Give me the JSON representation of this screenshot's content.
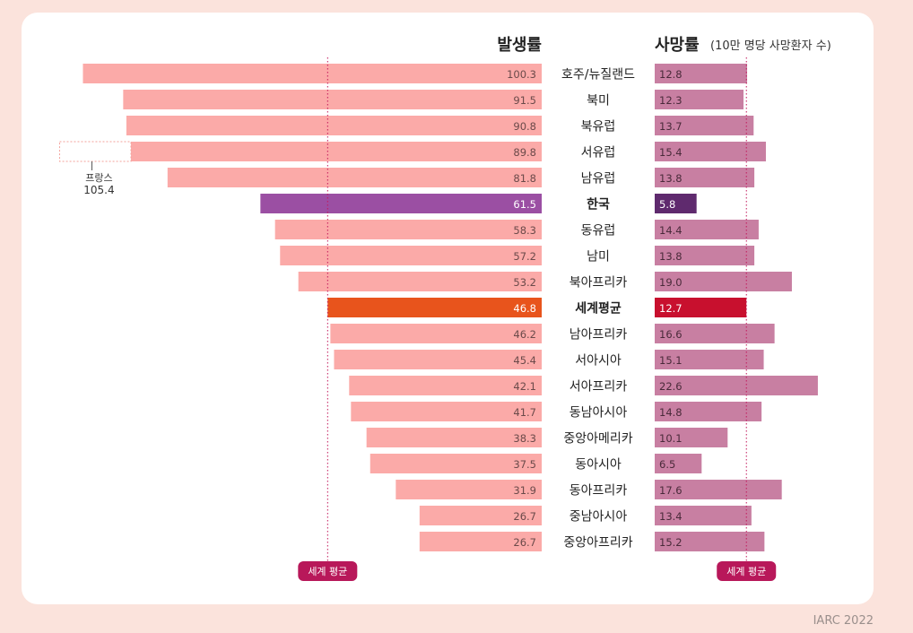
{
  "source": "IARC 2022",
  "chart_data": {
    "type": "bar",
    "layout": "butterfly",
    "left_title": "발생률",
    "right_title": "사망률",
    "right_subtitle": "(10만 명당 사망환자 수)",
    "categories": [
      "호주/뉴질랜드",
      "북미",
      "북유럽",
      "서유럽",
      "남유럽",
      "한국",
      "동유럽",
      "남미",
      "북아프리카",
      "세계평균",
      "남아프리카",
      "서아시아",
      "서아프리카",
      "동남아시아",
      "중앙아메리카",
      "동아시아",
      "동아프리카",
      "중남아시아",
      "중앙아프리카"
    ],
    "series": [
      {
        "name": "발생률",
        "values": [
          100.3,
          91.5,
          90.8,
          89.8,
          81.8,
          61.5,
          58.3,
          57.2,
          53.2,
          46.8,
          46.2,
          45.4,
          42.1,
          41.7,
          38.3,
          37.5,
          31.9,
          26.7,
          26.7
        ]
      },
      {
        "name": "사망률",
        "values": [
          12.8,
          12.3,
          13.7,
          15.4,
          13.8,
          5.8,
          14.4,
          13.8,
          19.0,
          12.7,
          16.6,
          15.1,
          22.6,
          14.8,
          10.1,
          6.5,
          17.6,
          13.4,
          15.2
        ]
      }
    ],
    "highlight": {
      "한국": {
        "incidence_color": "#9b4fa3",
        "mortality_color": "#5f2a6e"
      },
      "세계평균": {
        "incidence_color": "#e8541c",
        "mortality_color": "#c8102e"
      }
    },
    "colors": {
      "incidence": "#fbaaa8",
      "mortality": "#c87fa2"
    },
    "average_label": "세계 평균",
    "annotation": {
      "label": "프랑스",
      "value": "105.4",
      "category": "서유럽"
    }
  }
}
